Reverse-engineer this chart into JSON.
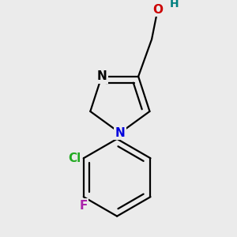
{
  "bg_color": "#ebebeb",
  "bond_color": "#000000",
  "bond_width": 1.6,
  "atom_labels": {
    "O": {
      "color": "#cc0000",
      "fontsize": 11,
      "fontweight": "bold"
    },
    "H": {
      "color": "#008080",
      "fontsize": 10,
      "fontweight": "bold"
    },
    "N_blue": {
      "color": "#0000dd",
      "fontsize": 11,
      "fontweight": "bold"
    },
    "N_black": {
      "color": "#000000",
      "fontsize": 11,
      "fontweight": "bold"
    },
    "Cl": {
      "color": "#22aa22",
      "fontsize": 11,
      "fontweight": "bold"
    },
    "F": {
      "color": "#aa22aa",
      "fontsize": 11,
      "fontweight": "bold"
    }
  },
  "figsize": [
    3.0,
    3.0
  ],
  "dpi": 100
}
